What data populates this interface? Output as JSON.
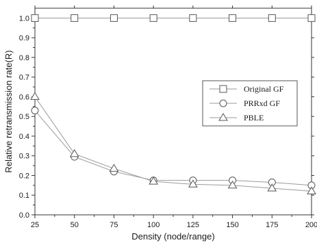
{
  "chart_data": {
    "type": "line",
    "xlabel": "Density (node/range)",
    "ylabel": "Relative retransmission rate(R)",
    "x": [
      25,
      50,
      75,
      100,
      125,
      150,
      175,
      200
    ],
    "xlim": [
      25,
      200
    ],
    "ylim": [
      0.0,
      1.05
    ],
    "x_ticks": [
      "25",
      "50",
      "75",
      "100",
      "125",
      "150",
      "175",
      "200"
    ],
    "y_ticks": [
      "0.0",
      "0.1",
      "0.2",
      "0.3",
      "0.4",
      "0.5",
      "0.6",
      "0.7",
      "0.8",
      "0.9",
      "1.0"
    ],
    "grid": false,
    "legend_position": "center-right",
    "series": [
      {
        "name": "Original GF",
        "marker": "square",
        "values": [
          1.0,
          1.0,
          1.0,
          1.0,
          1.0,
          1.0,
          1.0,
          1.0
        ]
      },
      {
        "name": "PRRxd GF",
        "marker": "circle",
        "values": [
          0.53,
          0.295,
          0.22,
          0.175,
          0.175,
          0.175,
          0.165,
          0.15
        ]
      },
      {
        "name": "PBLE",
        "marker": "triangle",
        "values": [
          0.6,
          0.31,
          0.235,
          0.17,
          0.155,
          0.15,
          0.135,
          0.12
        ]
      }
    ],
    "colors": {
      "line": "#9a9a9a",
      "marker": "#555555",
      "axis": "#333333"
    }
  }
}
